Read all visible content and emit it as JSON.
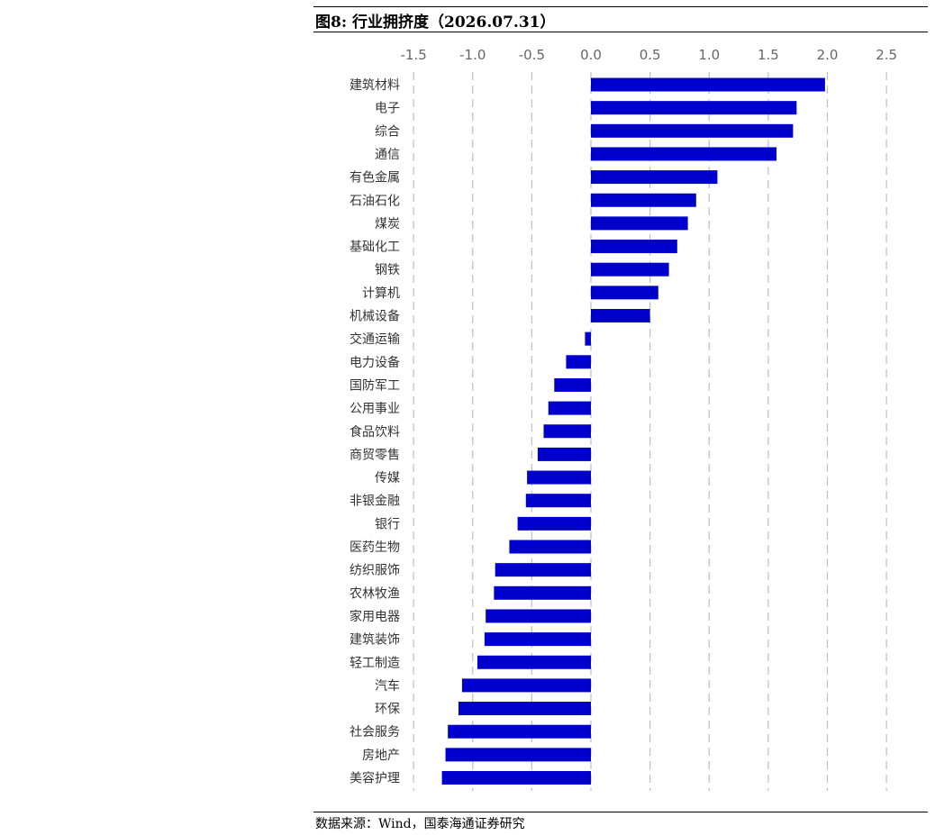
{
  "title": "图8:  行业拥挤度（2026.07.31）",
  "source": "数据来源：Wind，国泰海通证券研究",
  "colors": {
    "bar": "#0000CC",
    "grid": "#bfbfbf",
    "tick": "#666666",
    "label": "#333333"
  },
  "chart_data": {
    "type": "bar",
    "orientation": "horizontal",
    "xlim": [
      -1.5,
      2.5
    ],
    "xticks": [
      -1.5,
      -1.0,
      -0.5,
      0.0,
      0.5,
      1.0,
      1.5,
      2.0,
      2.5
    ],
    "xtick_labels": [
      "-1.5",
      "-1.0",
      "-0.5",
      "0.0",
      "0.5",
      "1.0",
      "1.5",
      "2.0",
      "2.5"
    ],
    "axis_position": "top",
    "grid": "vertical dashed",
    "categories": [
      "建筑材料",
      "电子",
      "综合",
      "通信",
      "有色金属",
      "石油石化",
      "煤炭",
      "基础化工",
      "钢铁",
      "计算机",
      "机械设备",
      "交通运输",
      "电力设备",
      "国防军工",
      "公用事业",
      "食品饮料",
      "商贸零售",
      "传媒",
      "非银金融",
      "银行",
      "医药生物",
      "纺织服饰",
      "农林牧渔",
      "家用电器",
      "建筑装饰",
      "轻工制造",
      "汽车",
      "环保",
      "社会服务",
      "房地产",
      "美容护理"
    ],
    "values": [
      1.98,
      1.74,
      1.71,
      1.57,
      1.07,
      0.89,
      0.82,
      0.73,
      0.66,
      0.57,
      0.5,
      -0.05,
      -0.21,
      -0.31,
      -0.36,
      -0.4,
      -0.45,
      -0.54,
      -0.55,
      -0.62,
      -0.69,
      -0.81,
      -0.82,
      -0.89,
      -0.9,
      -0.96,
      -1.09,
      -1.12,
      -1.21,
      -1.23,
      -1.26
    ]
  }
}
